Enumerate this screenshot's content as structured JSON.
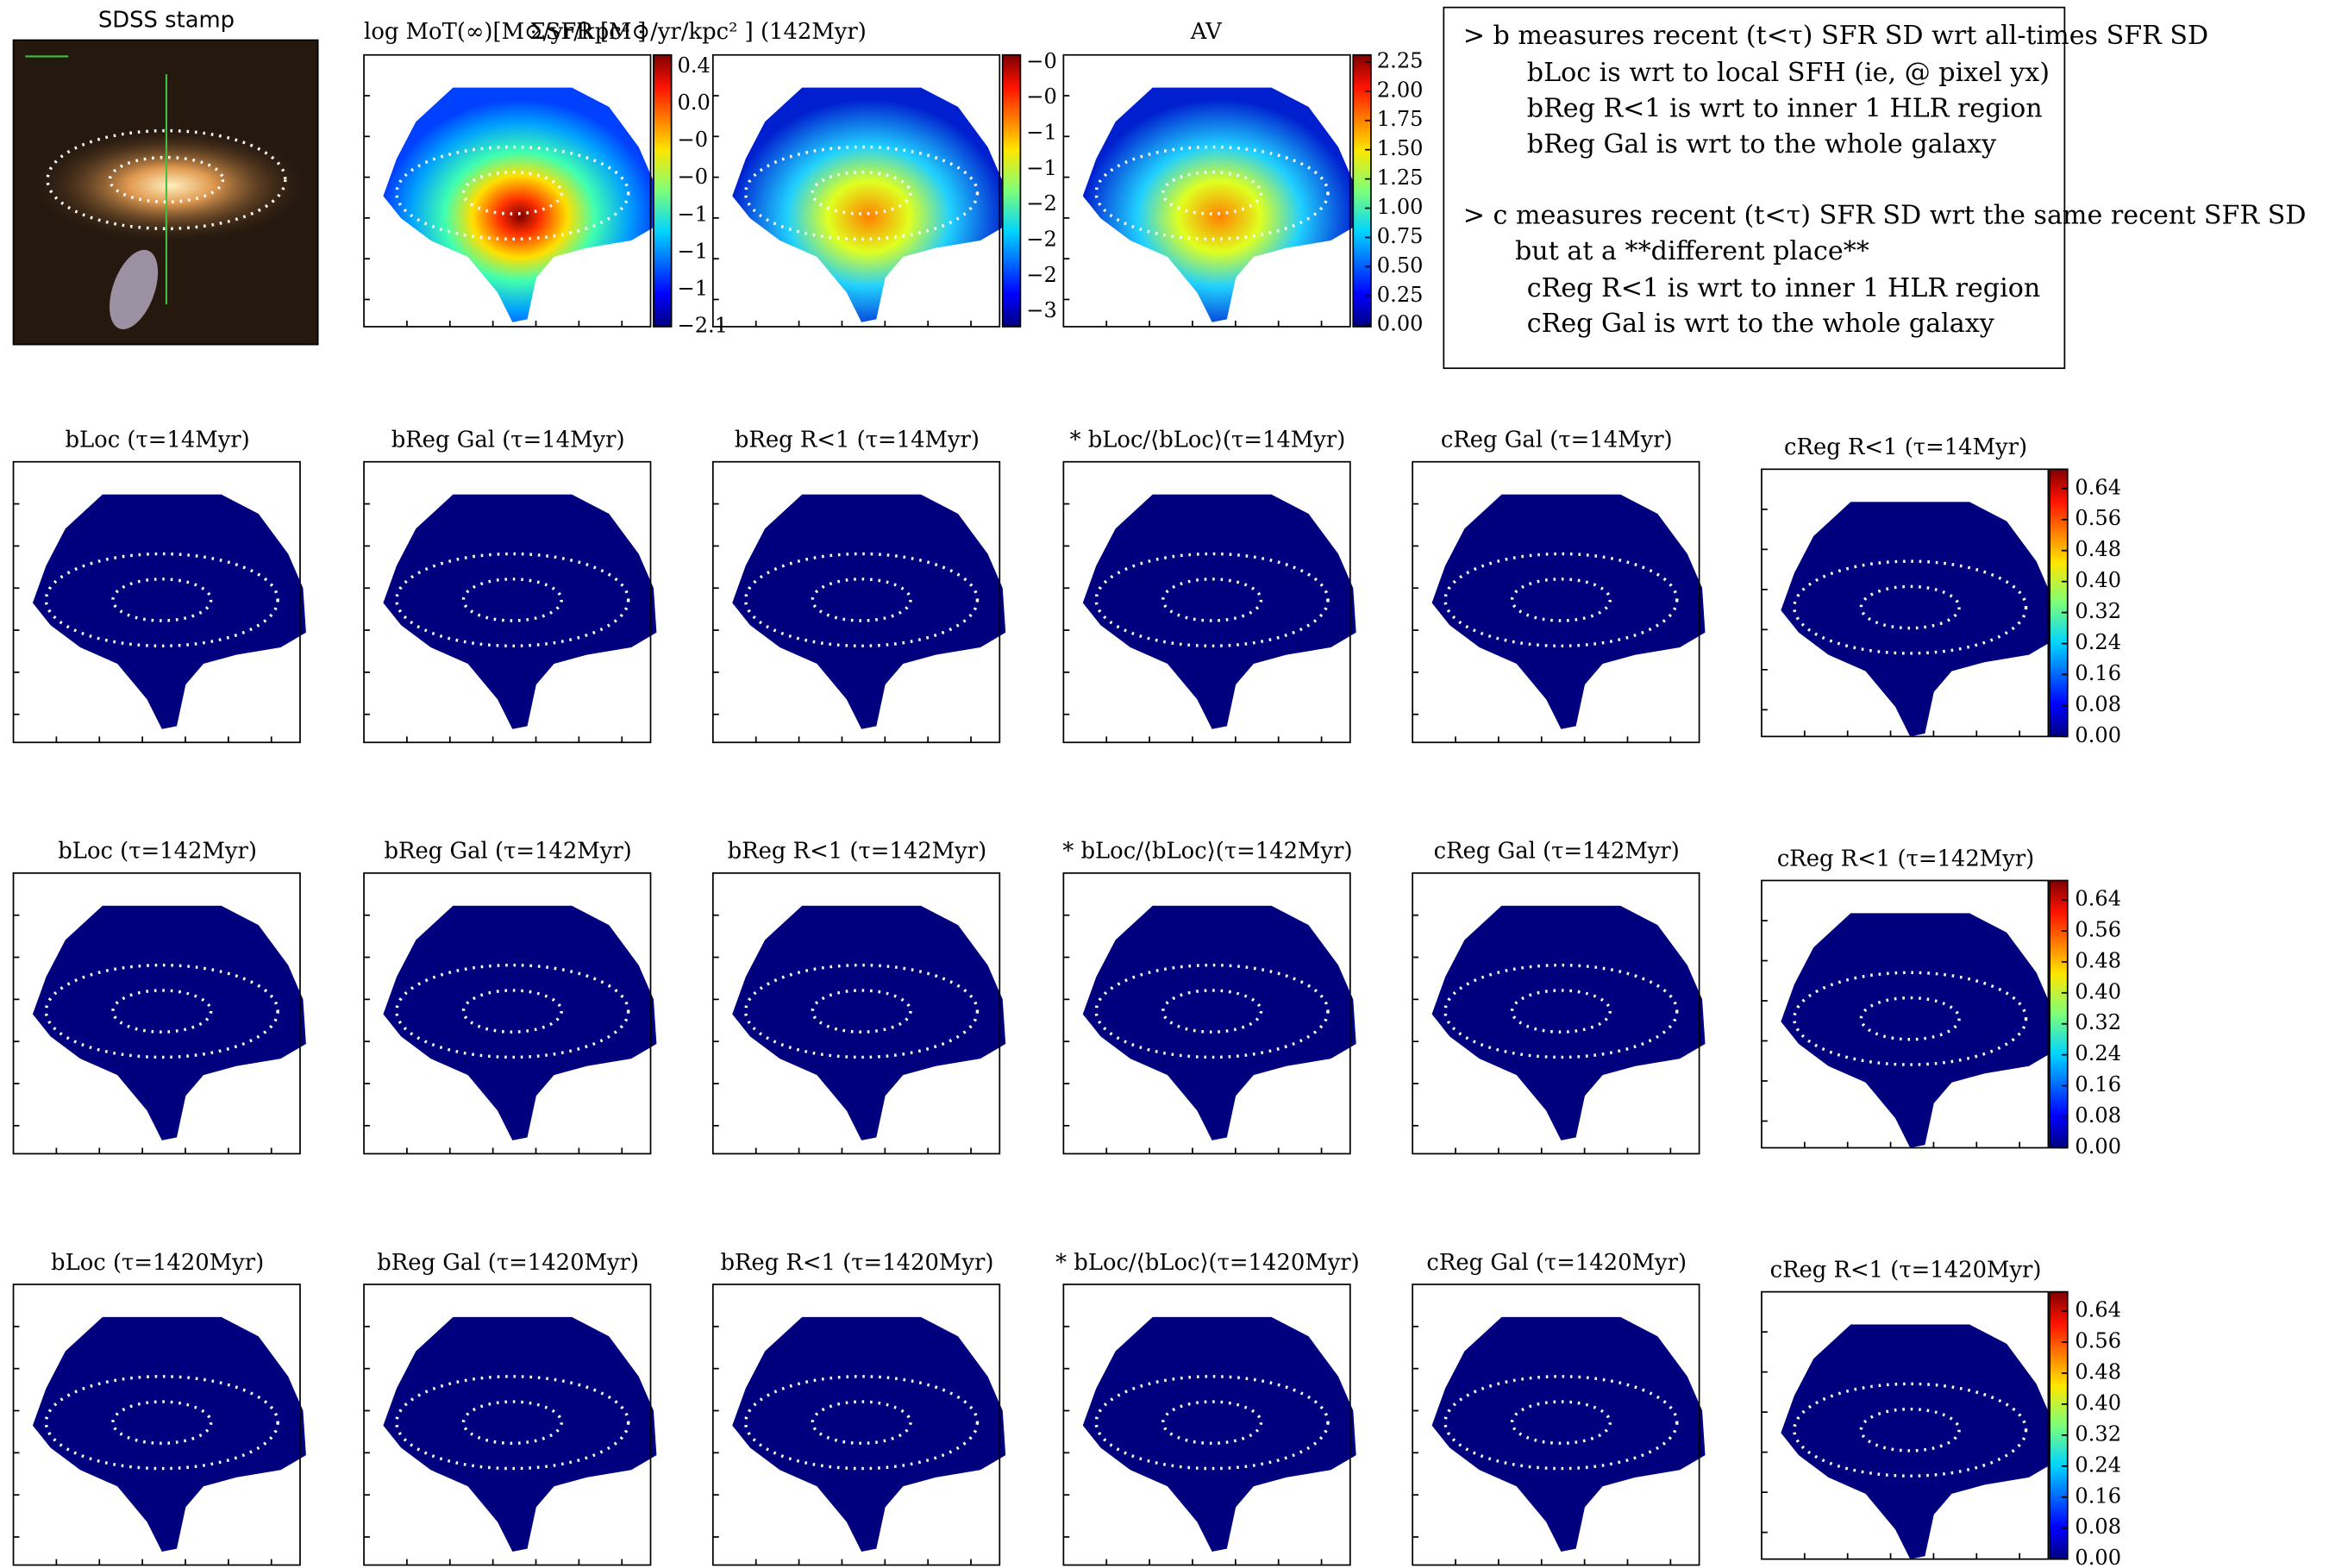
{
  "stamp": {
    "title": "SDSS stamp"
  },
  "top_maps": [
    {
      "title": "log MoT(∞)[M⊙/yr/kpc² ]",
      "colorbar_labels": [
        "0.4",
        "0.0",
        "−0",
        "−0",
        "−1",
        "−1",
        "−1",
        "−2.1"
      ]
    },
    {
      "title": "ΣSFR [M⊙/yr/kpc² ] (142Myr)",
      "colorbar_labels": [
        "−0",
        "−0",
        "−1",
        "−1",
        "−2",
        "−2",
        "−2",
        "−3"
      ]
    },
    {
      "title": "AV",
      "clim": [
        0,
        2.31
      ],
      "colorbar_ticks": [
        2.25,
        {
          "value": 2,
          "label": "2.00"
        },
        1.75,
        {
          "value": 1.5,
          "label": "1.50"
        },
        1.25,
        {
          "value": 1,
          "label": "1.00"
        },
        0.75,
        {
          "value": 0.5,
          "label": "0.50"
        },
        0.25,
        {
          "value": 0,
          "label": "0.00"
        }
      ]
    }
  ],
  "note": [
    "> b measures recent (t<τ) SFR SD wrt all-times SFR SD",
    "bLoc is wrt to local SFH (ie, @ pixel yx)",
    "bReg R<1 is wrt to inner 1 HLR region",
    "bReg Gal is wrt to the whole galaxy",
    "> c measures recent (t<τ) SFR SD wrt the same recent SFR SD",
    "but at a **different place**",
    "cReg R<1 is wrt to inner 1 HLR region",
    "cReg Gal is wrt to the whole galaxy"
  ],
  "rows": [
    {
      "titles": [
        "bLoc (τ=14Myr)",
        "bReg Gal (τ=14Myr)",
        "bReg R<1 (τ=14Myr)",
        "* bLoc/⟨bLoc⟩(τ=14Myr)",
        "cReg Gal (τ=14Myr)",
        "cReg R<1 (τ=14Myr)"
      ],
      "clim": [
        0,
        0.69
      ],
      "colorbar_ticks": [
        0.64,
        0.56,
        0.48,
        {
          "value": 0.4,
          "label": "0.40"
        },
        0.32,
        0.24,
        0.16,
        0.08,
        {
          "value": 0,
          "label": "0.00"
        }
      ]
    },
    {
      "titles": [
        "bLoc (τ=142Myr)",
        "bReg Gal (τ=142Myr)",
        "bReg R<1 (τ=142Myr)",
        "* bLoc/⟨bLoc⟩(τ=142Myr)",
        "cReg Gal (τ=142Myr)",
        "cReg R<1 (τ=142Myr)"
      ],
      "clim": [
        0,
        0.69
      ],
      "colorbar_ticks": [
        0.64,
        0.56,
        0.48,
        {
          "value": 0.4,
          "label": "0.40"
        },
        0.32,
        0.24,
        0.16,
        0.08,
        {
          "value": 0,
          "label": "0.00"
        }
      ]
    },
    {
      "titles": [
        "bLoc (τ=1420Myr)",
        "bReg Gal (τ=1420Myr)",
        "bReg R<1 (τ=1420Myr)",
        "* bLoc/⟨bLoc⟩(τ=1420Myr)",
        "cReg Gal (τ=1420Myr)",
        "cReg R<1 (τ=1420Myr)"
      ],
      "clim": [
        0,
        0.69
      ],
      "colorbar_ticks": [
        0.64,
        0.56,
        0.48,
        {
          "value": 0.4,
          "label": "0.40"
        },
        0.32,
        0.24,
        0.16,
        0.08,
        {
          "value": 0,
          "label": "0.00"
        }
      ]
    }
  ]
}
